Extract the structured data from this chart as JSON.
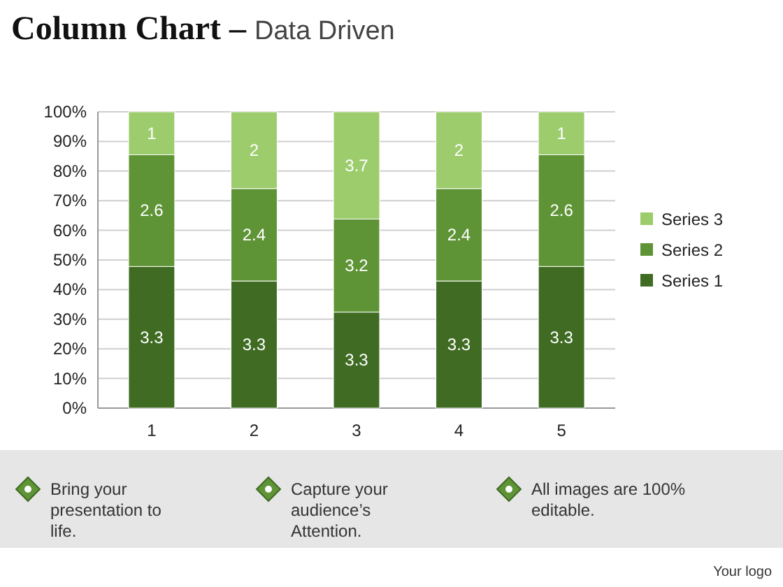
{
  "chart_data": {
    "type": "bar",
    "title": "Column Chart –",
    "subtitle": "Data Driven",
    "stacked": true,
    "categories": [
      "1",
      "2",
      "3",
      "4",
      "5"
    ],
    "series": [
      {
        "name": "Series 1",
        "color": "#3f6b22",
        "values": [
          47.8,
          42.9,
          32.4,
          42.9,
          47.8
        ]
      },
      {
        "name": "Series 2",
        "color": "#5f9436",
        "values": [
          37.7,
          31.2,
          31.4,
          31.2,
          37.7
        ]
      },
      {
        "name": "Series 3",
        "color": "#9ccc6c",
        "values": [
          14.5,
          25.9,
          36.2,
          25.9,
          14.5
        ]
      }
    ],
    "ylim": [
      0,
      100
    ],
    "yticks": [
      {
        "value": 0,
        "label": "0%"
      },
      {
        "value": 10,
        "label": "10%"
      },
      {
        "value": 20,
        "label": "20%"
      },
      {
        "value": 30,
        "label": "30%"
      },
      {
        "value": 40,
        "label": "40%"
      },
      {
        "value": 50,
        "label": "50%"
      },
      {
        "value": 60,
        "label": "60%"
      },
      {
        "value": 70,
        "label": "70%"
      },
      {
        "value": 80,
        "label": "80%"
      },
      {
        "value": 90,
        "label": "90%"
      },
      {
        "value": 100,
        "label": "100%"
      }
    ],
    "grid": "y",
    "legend": "right",
    "annotations": [
      "Bring your presentation to life.",
      "Capture your audience’s Attention.",
      "All images are 100% editable.",
      "Your logo",
      "3.3",
      "3.3",
      "3.3",
      "3.3",
      "3.3",
      "2.6",
      "2.4",
      "3.2",
      "2.4",
      "2.6",
      "1",
      "2",
      "3.7",
      "2",
      "1"
    ]
  }
}
